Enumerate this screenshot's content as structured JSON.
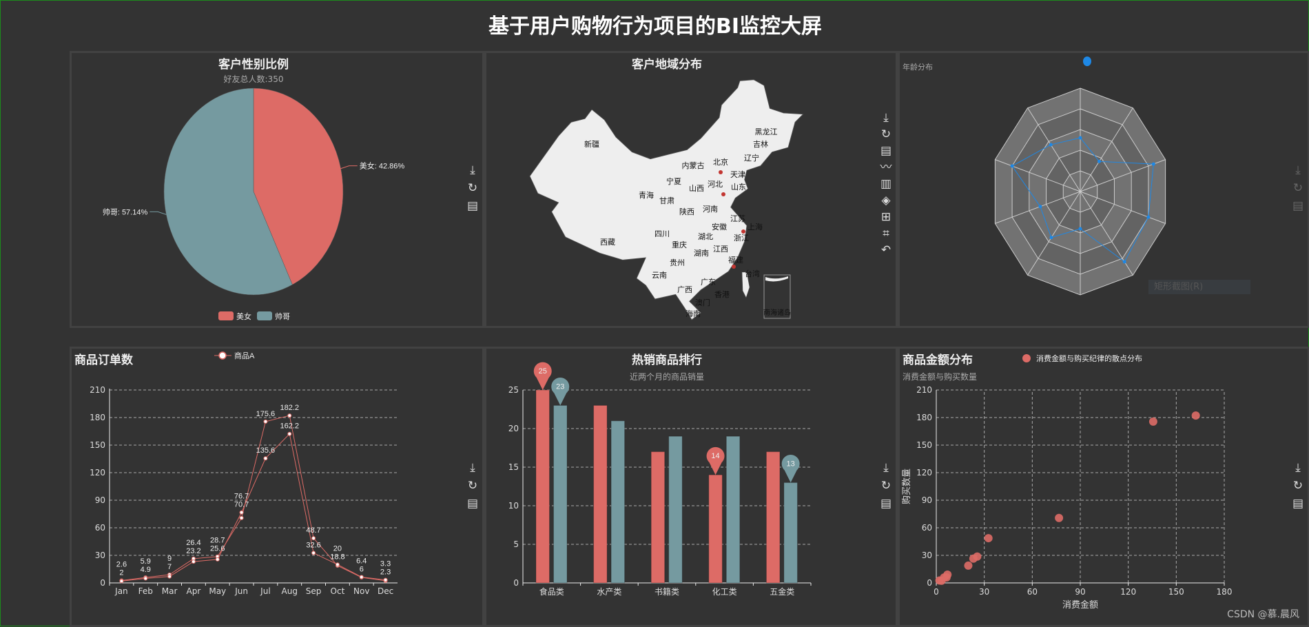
{
  "page_title": "基于用户购物行为项目的BI监控大屏",
  "colors": {
    "red": "#dd6b66",
    "teal": "#759aa0",
    "blue": "#1e88e5",
    "background": "#333333"
  },
  "toolbox_icons": [
    "download-icon",
    "refresh-icon",
    "data-view-icon"
  ],
  "map_toolbox_icons": [
    "download-icon",
    "refresh-icon",
    "data-view-icon",
    "line-chart-icon",
    "bar-chart-icon",
    "stack-icon",
    "tiled-icon",
    "crop-icon",
    "undo-icon"
  ],
  "gender": {
    "title": "客户性别比例",
    "subtitle": "好友总人数:350",
    "chart_data": {
      "type": "pie",
      "slices": [
        {
          "name": "美女",
          "percent": 42.86,
          "label": "美女: 42.86%",
          "color": "#dd6b66"
        },
        {
          "name": "帅哥",
          "percent": 57.14,
          "label": "帅哥: 57.14%",
          "color": "#759aa0"
        }
      ],
      "legend": [
        "美女",
        "帅哥"
      ],
      "legend_position": "bottom"
    }
  },
  "region": {
    "title": "客户地域分布",
    "provinces": [
      "新疆",
      "西藏",
      "青海",
      "甘肃",
      "宁夏",
      "内蒙古",
      "北京",
      "天津",
      "河北",
      "山西",
      "山东",
      "辽宁",
      "吉林",
      "黑龙江",
      "陕西",
      "河南",
      "安徽",
      "江苏",
      "上海",
      "湖北",
      "浙江",
      "四川",
      "重庆",
      "湖南",
      "江西",
      "福建",
      "贵州",
      "云南",
      "台湾",
      "广东",
      "广西",
      "香港",
      "澳门",
      "海南"
    ],
    "inset_label": "南海诸岛",
    "highlighted": [
      "北京",
      "山东",
      "上海",
      "福建"
    ]
  },
  "age": {
    "subtitle": "年龄分布",
    "chart_data": {
      "type": "radar",
      "axes_count": 10,
      "rings": 5,
      "values_fraction_of_max": [
        0.52,
        0.36,
        0.86,
        0.8,
        0.84,
        0.36,
        0.55,
        0.47,
        0.8,
        0.56
      ],
      "color": "#1e88e5"
    },
    "screenshot_tip": "矩形截图(R)"
  },
  "orders": {
    "title": "商品订单数",
    "chart_data": {
      "type": "line",
      "categories": [
        "Jan",
        "Feb",
        "Mar",
        "Apr",
        "May",
        "Jun",
        "Jul",
        "Aug",
        "Sep",
        "Oct",
        "Nov",
        "Dec"
      ],
      "series": [
        {
          "name": "商品A",
          "values": [
            2.6,
            5.9,
            9.0,
            26.4,
            28.7,
            70.7,
            175.6,
            182.2,
            48.7,
            18.8,
            6.0,
            2.3
          ]
        },
        {
          "name": "商品A",
          "values": [
            2.0,
            4.9,
            7.0,
            23.2,
            25.6,
            76.7,
            135.6,
            162.2,
            32.6,
            20.0,
            6.4,
            3.3
          ]
        }
      ],
      "legend": [
        "商品A"
      ],
      "yticks": [
        0,
        30,
        60,
        90,
        120,
        150,
        180,
        210
      ],
      "ylim": [
        0,
        210
      ],
      "grid": true
    }
  },
  "hot": {
    "title": "热销商品排行",
    "subtitle": "近两个月的商品销量",
    "chart_data": {
      "type": "bar",
      "categories": [
        "食品类",
        "水产类",
        "书籍类",
        "化工类",
        "五金类"
      ],
      "series": [
        {
          "values": [
            25,
            23,
            17,
            14,
            17
          ],
          "color": "#dd6b66",
          "markers": [
            "max 25",
            "min 14"
          ]
        },
        {
          "values": [
            23,
            21,
            19,
            19,
            13
          ],
          "color": "#759aa0",
          "markers": [
            "max 23",
            "min 13"
          ]
        }
      ],
      "marker_points": [
        {
          "series": 0,
          "index": 0,
          "label": "25"
        },
        {
          "series": 0,
          "index": 3,
          "label": "14"
        },
        {
          "series": 1,
          "index": 0,
          "label": "23"
        },
        {
          "series": 1,
          "index": 4,
          "label": "13"
        }
      ],
      "yticks": [
        0,
        5,
        10,
        15,
        20,
        25
      ],
      "ylim": [
        0,
        25
      ],
      "grid": true
    }
  },
  "amount": {
    "title": "商品金额分布",
    "subtitle": "消费金额与购买数量",
    "chart_data": {
      "type": "scatter",
      "series": [
        {
          "name": "消费金额与购买纪律的散点分布",
          "points": [
            [
              2.0,
              2.6
            ],
            [
              4.9,
              5.9
            ],
            [
              7.0,
              9.0
            ],
            [
              23.2,
              26.4
            ],
            [
              25.6,
              28.7
            ],
            [
              76.7,
              70.7
            ],
            [
              135.6,
              175.6
            ],
            [
              162.2,
              182.2
            ],
            [
              32.6,
              48.7
            ],
            [
              20.0,
              18.8
            ],
            [
              6.4,
              6.0
            ],
            [
              3.3,
              2.3
            ]
          ]
        }
      ],
      "xlabel": "消费金额",
      "ylabel": "购买数量",
      "xticks": [
        0,
        30,
        60,
        90,
        120,
        150,
        180
      ],
      "yticks": [
        0,
        30,
        60,
        90,
        120,
        150,
        180,
        210
      ],
      "xlim": [
        0,
        180
      ],
      "ylim": [
        0,
        210
      ],
      "grid": true
    },
    "watermark": "CSDN @慕.晨风"
  }
}
